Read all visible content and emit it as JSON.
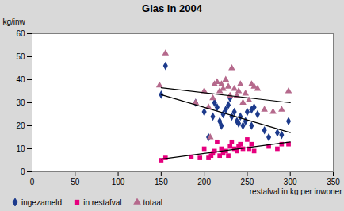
{
  "chart_data": {
    "type": "scatter",
    "title": "Glas in 2004",
    "x_label": "restafval in kg per inwoner",
    "y_label": "kg/inw",
    "xlim": [
      0,
      350
    ],
    "xticks": [
      0,
      50,
      100,
      150,
      200,
      250,
      300,
      350
    ],
    "ylim": [
      0,
      60
    ],
    "yticks": [
      0,
      10,
      20,
      30,
      40,
      50,
      60
    ],
    "grid": true,
    "legend": "bottom",
    "series": [
      {
        "name": "ingezameld",
        "color": "#1c3a8c",
        "marker": "diamond",
        "x": [
          150,
          155,
          190,
          200,
          205,
          210,
          212,
          215,
          218,
          220,
          222,
          225,
          228,
          230,
          232,
          235,
          238,
          240,
          242,
          245,
          248,
          250,
          255,
          255,
          258,
          262,
          270,
          275,
          285,
          290,
          298
        ],
        "values": [
          33.5,
          46,
          30,
          26,
          15,
          24,
          30,
          28,
          22,
          20,
          25,
          27,
          29,
          32,
          24,
          26,
          22,
          21,
          24,
          20,
          22,
          26,
          27,
          20,
          28,
          25,
          18,
          15,
          17,
          16,
          22
        ],
        "trend": {
          "x": [
            150,
            300
          ],
          "values": [
            33.5,
            17
          ]
        }
      },
      {
        "name": "in restafval",
        "color": "#e6007e",
        "marker": "square",
        "x": [
          150,
          155,
          185,
          195,
          200,
          205,
          208,
          210,
          212,
          215,
          218,
          220,
          222,
          225,
          228,
          230,
          232,
          235,
          238,
          240,
          242,
          245,
          250,
          252,
          255,
          258,
          275,
          285,
          290,
          298
        ],
        "values": [
          5,
          6,
          6.5,
          6,
          10,
          6,
          7,
          8,
          9,
          13,
          7,
          10,
          8,
          9,
          7,
          11,
          13,
          10,
          9,
          11,
          12,
          10,
          14,
          10,
          12,
          9,
          11,
          10,
          12,
          12
        ],
        "trend": {
          "x": [
            150,
            300
          ],
          "values": [
            5.5,
            13
          ]
        }
      },
      {
        "name": "totaal",
        "color": "#b5698c",
        "marker": "triangle",
        "x": [
          148,
          155,
          190,
          200,
          205,
          207,
          210,
          212,
          215,
          218,
          220,
          222,
          225,
          228,
          230,
          232,
          235,
          238,
          240,
          242,
          245,
          248,
          252,
          255,
          258,
          262,
          270,
          280,
          290,
          298
        ],
        "values": [
          37.5,
          51.5,
          30,
          35,
          28,
          15,
          32,
          38,
          39,
          35,
          38,
          36,
          40,
          37,
          33,
          45,
          36,
          33,
          35,
          38,
          30,
          34,
          31,
          38,
          37,
          36,
          27,
          26,
          27,
          35
        ],
        "trend": {
          "x": [
            150,
            300
          ],
          "values": [
            36.5,
            30
          ]
        }
      }
    ]
  }
}
